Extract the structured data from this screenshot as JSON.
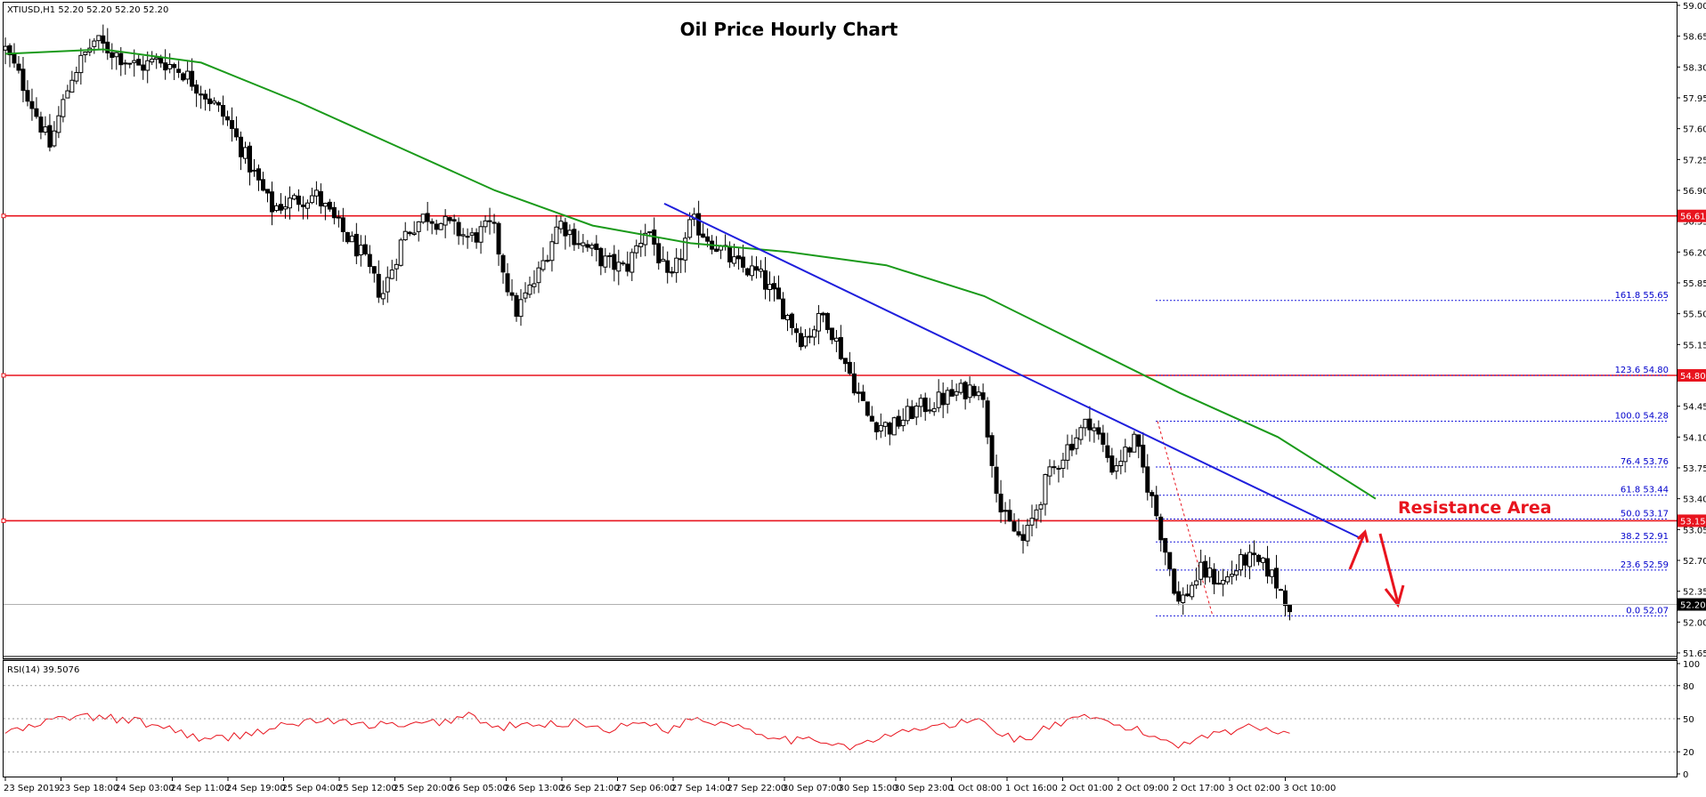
{
  "header": {
    "symbol_info": "XTIUSD,H1  52.20 52.20 52.20 52.20",
    "title": "Oil Price Hourly Chart"
  },
  "annotations": {
    "resistance_text": "Resistance Area"
  },
  "rsi_panel": {
    "label": "RSI(14) 39.5076",
    "levels": [
      100,
      80,
      50,
      20,
      0
    ],
    "ylim": [
      0,
      100
    ]
  },
  "colors": {
    "candle_up": "#ffffff",
    "candle_down": "#000000",
    "sma": "#1a9a1a",
    "trendline": "#1f1fdc",
    "horizontal_levels": "#e8141e",
    "fib_levels": "#1f1fdc",
    "rsi": "#e8141e",
    "current_price_badge": "#000000"
  },
  "chart_data": {
    "type": "candlestick",
    "symbol": "XTIUSD",
    "timeframe": "H1",
    "ylim": [
      51.65,
      59.0
    ],
    "y_ticks": [
      59.0,
      58.65,
      58.3,
      57.95,
      57.6,
      57.25,
      56.9,
      56.55,
      56.2,
      55.85,
      55.5,
      55.15,
      54.8,
      54.45,
      54.1,
      53.75,
      53.4,
      53.05,
      52.7,
      52.35,
      52.0,
      51.65
    ],
    "x_ticks": [
      "23 Sep 2019",
      "23 Sep 18:00",
      "24 Sep 03:00",
      "24 Sep 11:00",
      "24 Sep 19:00",
      "25 Sep 04:00",
      "25 Sep 12:00",
      "25 Sep 20:00",
      "26 Sep 05:00",
      "26 Sep 13:00",
      "26 Sep 21:00",
      "27 Sep 06:00",
      "27 Sep 14:00",
      "27 Sep 22:00",
      "30 Sep 07:00",
      "30 Sep 15:00",
      "30 Sep 23:00",
      "1 Oct 08:00",
      "1 Oct 16:00",
      "2 Oct 01:00",
      "2 Oct 09:00",
      "2 Oct 17:00",
      "3 Oct 02:00",
      "3 Oct 10:00"
    ],
    "price_path": [
      58.5,
      58.0,
      57.4,
      58.2,
      58.6,
      58.45,
      58.3,
      58.38,
      58.25,
      58.0,
      57.7,
      57.2,
      56.7,
      56.78,
      56.85,
      56.5,
      56.2,
      55.7,
      56.4,
      56.62,
      56.5,
      56.35,
      56.5,
      55.5,
      55.9,
      56.55,
      56.3,
      56.1,
      56.0,
      56.5,
      55.8,
      56.55,
      56.3,
      56.05,
      55.95,
      55.6,
      55.2,
      55.5,
      54.9,
      54.3,
      54.2,
      54.4,
      54.5,
      54.6,
      54.7,
      53.2,
      52.9,
      53.6,
      54.0,
      54.3,
      53.75,
      54.05,
      53.2,
      52.2,
      52.58,
      52.45,
      52.72,
      52.6,
      52.2
    ],
    "sma_path": [
      58.45,
      58.5,
      58.35,
      57.9,
      57.4,
      56.9,
      56.5,
      56.3,
      56.2,
      56.05,
      55.7,
      55.15,
      54.6,
      54.1,
      53.4
    ],
    "horizontal_levels": [
      56.61,
      54.8,
      53.15
    ],
    "current_price": 52.2,
    "trendline": {
      "start": {
        "time": "27 Sep 14:00",
        "price": 56.75
      },
      "end": {
        "time": "3 Oct 10:00",
        "price": 52.95
      }
    },
    "fib_retracement": {
      "high": 54.28,
      "low": 52.07,
      "levels": [
        {
          "label": "161.8",
          "price": 55.65
        },
        {
          "label": "123.6",
          "price": 54.8
        },
        {
          "label": "100.0",
          "price": 54.28
        },
        {
          "label": "76.4",
          "price": 53.76
        },
        {
          "label": "61.8",
          "price": 53.44
        },
        {
          "label": "50.0",
          "price": 53.17
        },
        {
          "label": "38.2",
          "price": 52.91
        },
        {
          "label": "23.6",
          "price": 52.59
        },
        {
          "label": "0.0",
          "price": 52.07
        }
      ]
    },
    "price_badges": [
      56.61,
      54.8,
      53.15,
      52.2
    ],
    "rsi_path": [
      38,
      41,
      48,
      52,
      51,
      50,
      47,
      43,
      38,
      30,
      33,
      37,
      41,
      45,
      49,
      47,
      44,
      45,
      42,
      46,
      48,
      55,
      41,
      44,
      43,
      46,
      47,
      40,
      43,
      48,
      39,
      51,
      47,
      45,
      38,
      33,
      29,
      31,
      25,
      28,
      35,
      40,
      43,
      45,
      49,
      36,
      30,
      42,
      47,
      51,
      45,
      40,
      33,
      26,
      35,
      38,
      42,
      41,
      39
    ]
  }
}
